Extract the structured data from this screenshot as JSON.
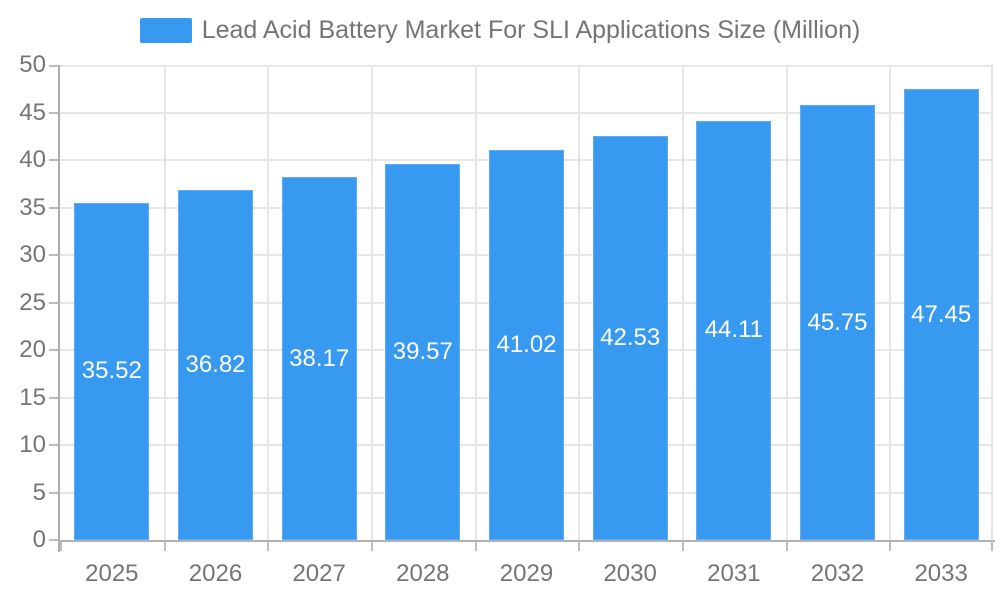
{
  "legend": {
    "label": "Lead Acid Battery Market For SLI Applications Size (Million)"
  },
  "chart_data": {
    "type": "bar",
    "title": "Lead Acid Battery Market For SLI Applications Size (Million)",
    "categories": [
      "2025",
      "2026",
      "2027",
      "2028",
      "2029",
      "2030",
      "2031",
      "2032",
      "2033"
    ],
    "series": [
      {
        "name": "Lead Acid Battery Market For SLI Applications Size (Million)",
        "values": [
          35.52,
          36.82,
          38.17,
          39.57,
          41.02,
          42.53,
          44.11,
          45.75,
          47.45
        ]
      }
    ],
    "value_label_decimals": 2,
    "xlabel": "",
    "ylabel": "",
    "ylim": [
      0,
      50
    ],
    "ytick_step": 5,
    "grid": "horizontal and vertical category boundaries",
    "legend_position": "top-center",
    "colors": {
      "bar": "#3899f0",
      "bar_border": "#60aaf2",
      "value_label": "#ffffff",
      "axis_label": "#757575",
      "gridline": "#e6e6e6",
      "axis_line": "#adadad",
      "background": "#ffffff"
    }
  }
}
